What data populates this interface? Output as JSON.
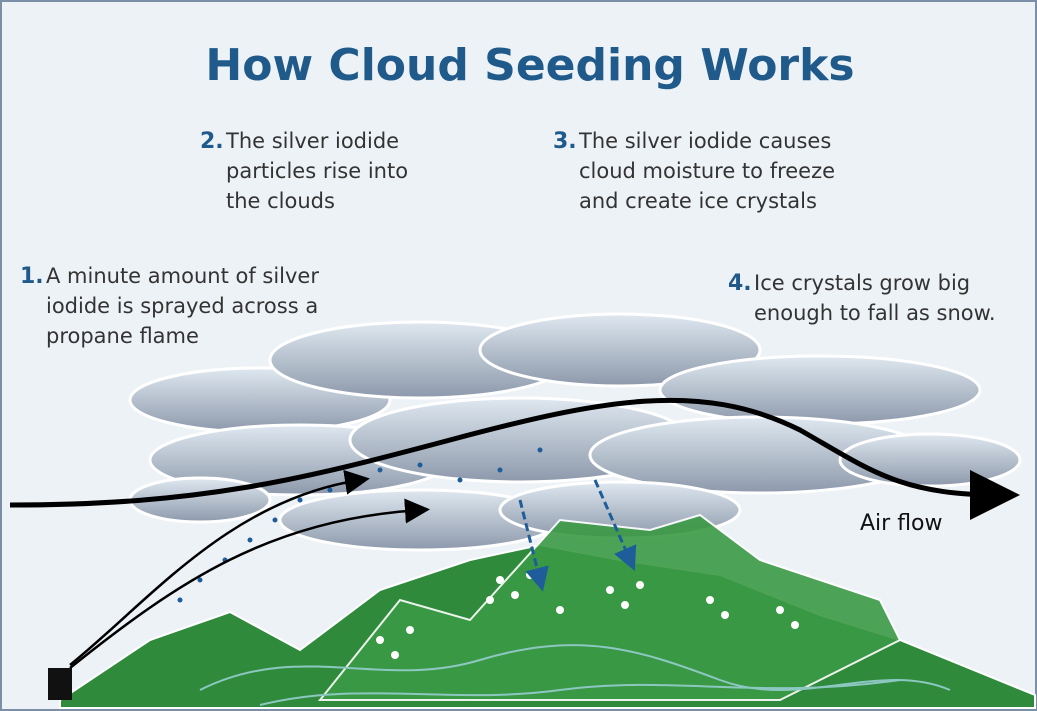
{
  "title": "How Cloud Seeding Works",
  "steps": [
    {
      "number": "1.",
      "lines": [
        "A minute amount of silver",
        "iodide  is  sprayed across a",
        "propane flame"
      ]
    },
    {
      "number": "2.",
      "lines": [
        "The silver iodide",
        "particles rise into",
        "the clouds"
      ]
    },
    {
      "number": "3.",
      "lines": [
        "The silver iodide causes",
        "cloud moisture to freeze",
        "and create ice crystals"
      ]
    },
    {
      "number": "4.",
      "lines": [
        "Ice crystals grow big",
        "enough to fall as snow."
      ]
    }
  ],
  "airflow_label": "Air flow"
}
